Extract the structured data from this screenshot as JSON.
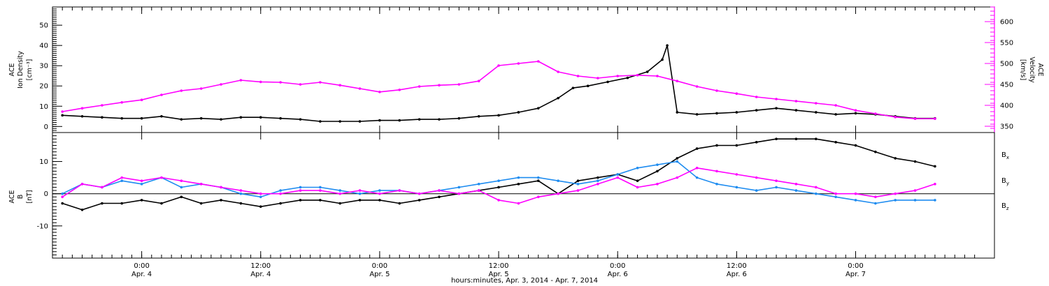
{
  "chart_data": [
    {
      "type": "scatter",
      "panel": "top",
      "ylabel_left": [
        "ACE",
        "Ion Density",
        "[cm⁻³]"
      ],
      "ylabel_right": [
        "ACE",
        "Velocity",
        "[km/s]"
      ],
      "ylim_left": [
        -3,
        59
      ],
      "yticks_left": [
        0,
        10,
        20,
        30,
        40,
        50
      ],
      "ylim_right": [
        335,
        635
      ],
      "yticks_right": [
        350,
        400,
        450,
        500,
        550,
        600
      ],
      "series": [
        {
          "axis": "left",
          "color": "#000000",
          "points": [
            [
              -8.0,
              5.5
            ],
            [
              -6.0,
              5.0
            ],
            [
              -4.0,
              4.5
            ],
            [
              -2.0,
              4.0
            ],
            [
              0.0,
              4.0
            ],
            [
              2.0,
              5.0
            ],
            [
              4.0,
              3.5
            ],
            [
              6.0,
              4.0
            ],
            [
              8.0,
              3.5
            ],
            [
              10.0,
              4.5
            ],
            [
              12.0,
              4.5
            ],
            [
              14.0,
              4.0
            ],
            [
              16.0,
              3.5
            ],
            [
              18.0,
              2.5
            ],
            [
              20.0,
              2.5
            ],
            [
              22.0,
              2.5
            ],
            [
              24.0,
              3.0
            ],
            [
              26.0,
              3.0
            ],
            [
              28.0,
              3.5
            ],
            [
              30.0,
              3.5
            ],
            [
              32.0,
              4.0
            ],
            [
              34.0,
              5.0
            ],
            [
              36.0,
              5.5
            ],
            [
              38.0,
              7.0
            ],
            [
              40.0,
              9.0
            ],
            [
              42.0,
              14.0
            ],
            [
              43.5,
              19.0
            ],
            [
              45.0,
              20.0
            ],
            [
              47.0,
              22.0
            ],
            [
              49.0,
              24.0
            ],
            [
              51.0,
              27.0
            ],
            [
              52.5,
              33.0
            ],
            [
              53.0,
              40.0
            ],
            [
              54.0,
              7.0
            ],
            [
              56.0,
              6.0
            ],
            [
              58.0,
              6.5
            ],
            [
              60.0,
              7.0
            ],
            [
              62.0,
              8.0
            ],
            [
              64.0,
              9.0
            ],
            [
              66.0,
              8.0
            ],
            [
              68.0,
              7.0
            ],
            [
              70.0,
              6.0
            ],
            [
              72.0,
              6.5
            ],
            [
              74.0,
              6.0
            ],
            [
              76.0,
              5.0
            ],
            [
              78.0,
              4.0
            ],
            [
              80.0,
              4.0
            ]
          ]
        },
        {
          "axis": "right",
          "color": "#ff00ff",
          "points": [
            [
              -8.0,
              385
            ],
            [
              -6.0,
              393
            ],
            [
              -4.0,
              400
            ],
            [
              -2.0,
              407
            ],
            [
              0.0,
              413
            ],
            [
              2.0,
              425
            ],
            [
              4.0,
              435
            ],
            [
              6.0,
              440
            ],
            [
              8.0,
              450
            ],
            [
              10.0,
              460
            ],
            [
              12.0,
              456
            ],
            [
              14.0,
              455
            ],
            [
              16.0,
              450
            ],
            [
              18.0,
              455
            ],
            [
              20.0,
              448
            ],
            [
              22.0,
              440
            ],
            [
              24.0,
              432
            ],
            [
              26.0,
              437
            ],
            [
              28.0,
              445
            ],
            [
              30.0,
              448
            ],
            [
              32.0,
              450
            ],
            [
              34.0,
              458
            ],
            [
              36.0,
              495
            ],
            [
              38.0,
              500
            ],
            [
              40.0,
              505
            ],
            [
              42.0,
              480
            ],
            [
              44.0,
              470
            ],
            [
              46.0,
              465
            ],
            [
              48.0,
              470
            ],
            [
              50.0,
              472
            ],
            [
              52.0,
              470
            ],
            [
              54.0,
              458
            ],
            [
              56.0,
              445
            ],
            [
              58.0,
              435
            ],
            [
              60.0,
              428
            ],
            [
              62.0,
              420
            ],
            [
              64.0,
              415
            ],
            [
              66.0,
              410
            ],
            [
              68.0,
              405
            ],
            [
              70.0,
              400
            ],
            [
              72.0,
              388
            ],
            [
              74.0,
              380
            ],
            [
              76.0,
              372
            ],
            [
              78.0,
              368
            ],
            [
              80.0,
              368
            ]
          ]
        }
      ]
    },
    {
      "type": "scatter",
      "panel": "bottom",
      "ylabel_left": [
        "ACE",
        "B",
        "[nT]"
      ],
      "ylim": [
        -20,
        19
      ],
      "yticks": [
        -10,
        0,
        10
      ],
      "zero_line": true,
      "series": [
        {
          "name": "Bx",
          "legend_main": "B",
          "legend_sub": "x",
          "color": "#000000",
          "points": [
            [
              -8.0,
              -3
            ],
            [
              -6.0,
              -5
            ],
            [
              -4.0,
              -3
            ],
            [
              -2.0,
              -3
            ],
            [
              0.0,
              -2
            ],
            [
              2.0,
              -3
            ],
            [
              4.0,
              -1
            ],
            [
              6.0,
              -3
            ],
            [
              8.0,
              -2
            ],
            [
              10.0,
              -3
            ],
            [
              12.0,
              -4
            ],
            [
              14.0,
              -3
            ],
            [
              16.0,
              -2
            ],
            [
              18.0,
              -2
            ],
            [
              20.0,
              -3
            ],
            [
              22.0,
              -2
            ],
            [
              24.0,
              -2
            ],
            [
              26.0,
              -3
            ],
            [
              28.0,
              -2
            ],
            [
              30.0,
              -1
            ],
            [
              32.0,
              0
            ],
            [
              34.0,
              1
            ],
            [
              36.0,
              2
            ],
            [
              38.0,
              3
            ],
            [
              40.0,
              4
            ],
            [
              42.0,
              0
            ],
            [
              44.0,
              4
            ],
            [
              46.0,
              5
            ],
            [
              48.0,
              6
            ],
            [
              50.0,
              4
            ],
            [
              52.0,
              7
            ],
            [
              54.0,
              11
            ],
            [
              56.0,
              14
            ],
            [
              58.0,
              15
            ],
            [
              60.0,
              15
            ],
            [
              62.0,
              16
            ],
            [
              64.0,
              17
            ],
            [
              66.0,
              17
            ],
            [
              68.0,
              17
            ],
            [
              70.0,
              16
            ],
            [
              72.0,
              15
            ],
            [
              74.0,
              13
            ],
            [
              76.0,
              11
            ],
            [
              78.0,
              10
            ],
            [
              80.0,
              8.5
            ]
          ]
        },
        {
          "name": "By",
          "legend_main": "B",
          "legend_sub": "y",
          "color": "#1e8cf0",
          "points": [
            [
              -8.0,
              0
            ],
            [
              -6.0,
              3
            ],
            [
              -4.0,
              2
            ],
            [
              -2.0,
              4
            ],
            [
              0.0,
              3
            ],
            [
              2.0,
              5
            ],
            [
              4.0,
              2
            ],
            [
              6.0,
              3
            ],
            [
              8.0,
              2
            ],
            [
              10.0,
              0
            ],
            [
              12.0,
              -1
            ],
            [
              14.0,
              1
            ],
            [
              16.0,
              2
            ],
            [
              18.0,
              2
            ],
            [
              20.0,
              1
            ],
            [
              22.0,
              0
            ],
            [
              24.0,
              1
            ],
            [
              26.0,
              1
            ],
            [
              28.0,
              0
            ],
            [
              30.0,
              1
            ],
            [
              32.0,
              2
            ],
            [
              34.0,
              3
            ],
            [
              36.0,
              4
            ],
            [
              38.0,
              5
            ],
            [
              40.0,
              5
            ],
            [
              42.0,
              4
            ],
            [
              44.0,
              3
            ],
            [
              46.0,
              4
            ],
            [
              48.0,
              6
            ],
            [
              50.0,
              8
            ],
            [
              52.0,
              9
            ],
            [
              54.0,
              10
            ],
            [
              56.0,
              5
            ],
            [
              58.0,
              3
            ],
            [
              60.0,
              2
            ],
            [
              62.0,
              1
            ],
            [
              64.0,
              2
            ],
            [
              66.0,
              1
            ],
            [
              68.0,
              0
            ],
            [
              70.0,
              -1
            ],
            [
              72.0,
              -2
            ],
            [
              74.0,
              -3
            ],
            [
              76.0,
              -2
            ],
            [
              78.0,
              -2
            ],
            [
              80.0,
              -2
            ]
          ]
        },
        {
          "name": "Bz",
          "legend_main": "B",
          "legend_sub": "z",
          "color": "#ff00ff",
          "points": [
            [
              -8.0,
              -1
            ],
            [
              -6.0,
              3
            ],
            [
              -4.0,
              2
            ],
            [
              -2.0,
              5
            ],
            [
              0.0,
              4
            ],
            [
              2.0,
              5
            ],
            [
              4.0,
              4
            ],
            [
              6.0,
              3
            ],
            [
              8.0,
              2
            ],
            [
              10.0,
              1
            ],
            [
              12.0,
              0
            ],
            [
              14.0,
              0
            ],
            [
              16.0,
              1
            ],
            [
              18.0,
              1
            ],
            [
              20.0,
              0
            ],
            [
              22.0,
              1
            ],
            [
              24.0,
              0
            ],
            [
              26.0,
              1
            ],
            [
              28.0,
              0
            ],
            [
              30.0,
              1
            ],
            [
              32.0,
              0
            ],
            [
              34.0,
              1
            ],
            [
              36.0,
              -2
            ],
            [
              38.0,
              -3
            ],
            [
              40.0,
              -1
            ],
            [
              42.0,
              0
            ],
            [
              44.0,
              1
            ],
            [
              46.0,
              3
            ],
            [
              48.0,
              5
            ],
            [
              50.0,
              2
            ],
            [
              52.0,
              3
            ],
            [
              54.0,
              5
            ],
            [
              56.0,
              8
            ],
            [
              58.0,
              7
            ],
            [
              60.0,
              6
            ],
            [
              62.0,
              5
            ],
            [
              64.0,
              4
            ],
            [
              66.0,
              3
            ],
            [
              68.0,
              2
            ],
            [
              70.0,
              0
            ],
            [
              72.0,
              0
            ],
            [
              74.0,
              -1
            ],
            [
              76.0,
              0
            ],
            [
              78.0,
              1
            ],
            [
              80.0,
              3
            ]
          ]
        }
      ]
    }
  ],
  "x_axis": {
    "xlim": [
      -9,
      86
    ],
    "tick_hours": [
      0,
      12,
      24,
      36,
      48,
      60,
      72
    ],
    "ticks": [
      {
        "time": "0:00",
        "date": "Apr. 4"
      },
      {
        "time": "12:00",
        "date": "Apr. 4"
      },
      {
        "time": "0:00",
        "date": "Apr. 5"
      },
      {
        "time": "12:00",
        "date": "Apr. 5"
      },
      {
        "time": "0:00",
        "date": "Apr. 6"
      },
      {
        "time": "12:00",
        "date": "Apr. 6"
      },
      {
        "time": "0:00",
        "date": "Apr. 7"
      }
    ],
    "xlabel": "hours:minutes, Apr.  3, 2014 - Apr.  7, 2014"
  },
  "colors": {
    "density": "#000000",
    "velocity": "#ff00ff",
    "bx": "#000000",
    "by": "#1e8cf0",
    "bz": "#ff00ff"
  }
}
